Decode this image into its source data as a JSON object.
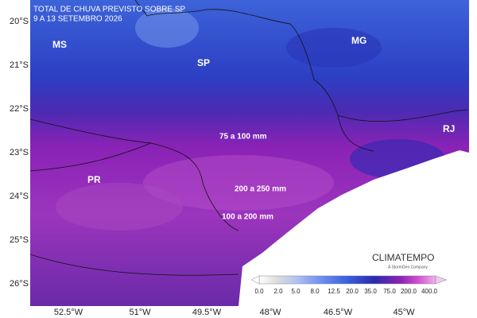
{
  "header": {
    "title": "TOTAL DE CHUVA PREVISTO SOBRE SP",
    "subtitle": "9 A 13 SETEMBRO 2026"
  },
  "states": [
    "MS",
    "SP",
    "MG",
    "RJ",
    "PR"
  ],
  "annotations": [
    "75 a 100 mm",
    "200 a 250 mm",
    "100 a 200 mm"
  ],
  "latitude_labels": [
    "20°S",
    "21°S",
    "22°S",
    "23°S",
    "24°S",
    "25°S",
    "26°S"
  ],
  "longitude_labels": [
    "52.5°W",
    "51°W",
    "49.5°W",
    "48°W",
    "46.5°W",
    "45°W"
  ],
  "colorbar_labels": [
    "0.0",
    "2.0",
    "5.0",
    "8.0",
    "12.5",
    "20.0",
    "35.0",
    "75.0",
    "200.0",
    "400.0"
  ],
  "logo": {
    "name": "CLIMATEMPO",
    "tagline": "A StormGeo Company"
  }
}
